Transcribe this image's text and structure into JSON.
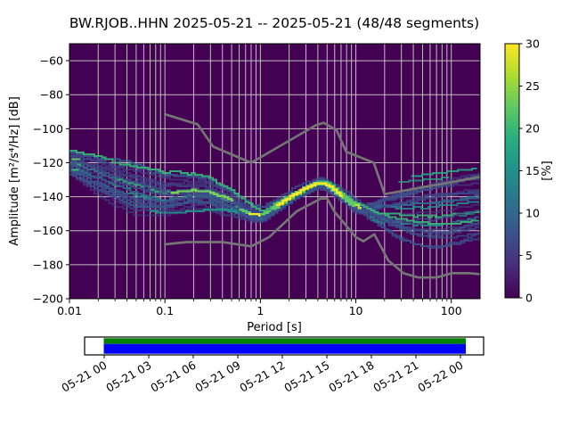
{
  "title": "BW.RJOB..HHN   2025-05-21 -- 2025-05-21  (48/48 segments)",
  "axes": {
    "xlabel": "Period [s]",
    "ylabel": "Amplitude [m²/s⁴/Hz] [dB]",
    "xlim": [
      0.01,
      200
    ],
    "ylim": [
      -200,
      -50
    ],
    "xticks": [
      {
        "v": 0.01,
        "label": "0.01"
      },
      {
        "v": 0.1,
        "label": "0.1"
      },
      {
        "v": 1,
        "label": "1"
      },
      {
        "v": 10,
        "label": "10"
      },
      {
        "v": 100,
        "label": "100"
      }
    ],
    "yticks": [
      {
        "v": -60,
        "label": "−60"
      },
      {
        "v": -80,
        "label": "−80"
      },
      {
        "v": -100,
        "label": "−100"
      },
      {
        "v": -120,
        "label": "−120"
      },
      {
        "v": -140,
        "label": "−140"
      },
      {
        "v": -160,
        "label": "−160"
      },
      {
        "v": -180,
        "label": "−180"
      },
      {
        "v": -200,
        "label": "−200"
      }
    ],
    "grid_db": [
      -60,
      -80,
      -100,
      -120,
      -140,
      -160,
      -180
    ]
  },
  "colorbar": {
    "label": "[%]",
    "lim": [
      0,
      30
    ],
    "ticks": [
      {
        "v": 0,
        "label": "0"
      },
      {
        "v": 5,
        "label": "5"
      },
      {
        "v": 10,
        "label": "10"
      },
      {
        "v": 15,
        "label": "15"
      },
      {
        "v": 20,
        "label": "20"
      },
      {
        "v": 25,
        "label": "25"
      },
      {
        "v": 30,
        "label": "30"
      }
    ],
    "gradient": [
      "#440154",
      "#472d7b",
      "#3b528b",
      "#2c728e",
      "#21918c",
      "#28ae80",
      "#5ec962",
      "#addc30",
      "#fde725"
    ]
  },
  "timeline": {
    "labels": [
      "05-21 00",
      "05-21 03",
      "05-21 06",
      "05-21 09",
      "05-21 12",
      "05-21 15",
      "05-21 18",
      "05-21 21",
      "05-22 00"
    ],
    "coverage_color_top": "#008000",
    "coverage_color_bottom": "#0000ff"
  },
  "colors": {
    "plot_bg": "#440154",
    "grid": "#d2d2cd",
    "noise_model": "#757575",
    "frame": "#000000"
  },
  "chart_data": {
    "type": "heatmap",
    "description": "PPSD 2D probability histogram (viridis) with Peterson noise models",
    "x_axis": "Period [s], log scale 0.01-200",
    "y_axis": "Amplitude dB, -200 to -50",
    "colorbar_percent_range": [
      0,
      30
    ],
    "segments_total": 48,
    "segments_used": 48,
    "mode_curve": [
      [
        0.01,
        -120.5
      ],
      [
        0.018,
        -126
      ],
      [
        0.03,
        -130.5
      ],
      [
        0.05,
        -134
      ],
      [
        0.1,
        -139.5
      ],
      [
        0.15,
        -138.3
      ],
      [
        0.2,
        -136.8
      ],
      [
        0.3,
        -137.2
      ],
      [
        0.5,
        -142.5
      ],
      [
        0.7,
        -147.5
      ],
      [
        0.9,
        -150
      ],
      [
        1.1,
        -150.3
      ],
      [
        1.4,
        -146.5
      ],
      [
        2,
        -140.8
      ],
      [
        2.8,
        -136
      ],
      [
        4,
        -132.2
      ],
      [
        4.8,
        -132.4
      ],
      [
        6,
        -135.8
      ],
      [
        8,
        -140.8
      ],
      [
        10,
        -144.8
      ],
      [
        11.2,
        -146.3
      ]
    ],
    "spread": {
      "L": [
        -2,
        -1.6,
        -1.3,
        -1.0,
        -0.7,
        -0.4,
        -0.1,
        0.15,
        0.35,
        0.6,
        0.8,
        1.0,
        1.05
      ],
      "up": [
        7.5,
        11,
        12.5,
        14,
        10.5,
        8,
        5,
        3.2,
        2.2,
        1.4,
        1.8,
        2.2,
        2.4
      ],
      "dn": [
        6,
        12,
        15,
        9,
        7.5,
        9,
        3,
        1.7,
        1.3,
        1.1,
        1.5,
        1.9,
        2.1
      ]
    },
    "fan": {
      "start_period": 11.2,
      "end_period": 195,
      "end_range_db": [
        -124,
        -162
      ],
      "low_dip_db": -170
    },
    "n_curves": 26,
    "highlights": [
      {
        "c": "#5ec962",
        "w": 2.4,
        "o": 1,
        "pts": [
          [
            0.0105,
            -117.3
          ],
          [
            0.013,
            -118.4
          ]
        ]
      },
      {
        "c": "#35b779",
        "w": 2.2,
        "o": 1,
        "pts": [
          [
            0.0105,
            -123.6
          ],
          [
            0.0125,
            -124.6
          ]
        ]
      },
      {
        "c": "#7ad151",
        "w": 2.4,
        "o": 1,
        "pts": [
          [
            0.115,
            -137.6
          ],
          [
            0.2,
            -136.2
          ],
          [
            0.3,
            -137.0
          ],
          [
            0.45,
            -141
          ],
          [
            0.52,
            -142.6
          ]
        ]
      },
      {
        "c": "#21918c",
        "w": 2.3,
        "o": 0.95,
        "pts": [
          [
            0.07,
            -148.8
          ],
          [
            0.12,
            -149.3
          ],
          [
            0.2,
            -148.8
          ],
          [
            0.3,
            -147.4
          ],
          [
            0.45,
            -147.8
          ],
          [
            0.6,
            -149.3
          ]
        ]
      },
      {
        "c": "#5ec962",
        "w": 2.6,
        "o": 1,
        "pts": [
          [
            0.6,
            -147
          ],
          [
            0.75,
            -149.6
          ],
          [
            0.95,
            -150.8
          ],
          [
            1.15,
            -149.6
          ],
          [
            1.3,
            -147.6
          ]
        ]
      },
      {
        "c": "#fde725",
        "w": 2.0,
        "o": 1,
        "pts": [
          [
            0.75,
            -149.9
          ],
          [
            1.0,
            -150.9
          ]
        ]
      },
      {
        "c": "#5ec962",
        "w": 4.2,
        "o": 1,
        "pts": [
          [
            1.3,
            -147.6
          ],
          [
            1.6,
            -144.3
          ],
          [
            2.0,
            -140.8
          ],
          [
            2.5,
            -137.6
          ],
          [
            3.0,
            -134.9
          ],
          [
            3.6,
            -132.9
          ],
          [
            4.2,
            -131.9
          ],
          [
            4.9,
            -132.5
          ],
          [
            5.6,
            -134.6
          ],
          [
            6.4,
            -137.2
          ],
          [
            7.4,
            -140
          ],
          [
            8.6,
            -142.6
          ],
          [
            10,
            -145.2
          ]
        ]
      },
      {
        "c": "#fde725",
        "w": 2.6,
        "o": 1,
        "pts": [
          [
            1.45,
            -145.6
          ],
          [
            1.8,
            -142.4
          ],
          [
            2.2,
            -139.4
          ],
          [
            2.7,
            -136.4
          ],
          [
            3.2,
            -134.2
          ],
          [
            3.8,
            -132.4
          ],
          [
            4.3,
            -131.9
          ],
          [
            4.8,
            -132.3
          ],
          [
            5.3,
            -133.6
          ],
          [
            5.9,
            -135.6
          ],
          [
            6.6,
            -138
          ],
          [
            7.3,
            -140.2
          ]
        ]
      },
      {
        "c": "#bddf26",
        "w": 2.4,
        "o": 1,
        "pts": [
          [
            9.8,
            -144.6
          ],
          [
            11.5,
            -146.8
          ]
        ]
      },
      {
        "c": "#26a784",
        "w": 2.0,
        "o": 0.9,
        "pts": [
          [
            38,
            -128.2
          ],
          [
            70,
            -126.2
          ],
          [
            120,
            -124.6
          ],
          [
            185,
            -123.4
          ]
        ]
      },
      {
        "c": "#26a784",
        "w": 2.0,
        "o": 0.75,
        "pts": [
          [
            28,
            -131.5
          ],
          [
            55,
            -129.8
          ],
          [
            95,
            -128.8
          ]
        ]
      },
      {
        "c": "#21918c",
        "w": 2.0,
        "o": 0.7,
        "pts": [
          [
            120,
            -151.5
          ],
          [
            180,
            -149.5
          ]
        ]
      },
      {
        "c": "#21918c",
        "w": 2.0,
        "o": 0.7,
        "pts": [
          [
            14,
            -152
          ],
          [
            20,
            -156.5
          ]
        ]
      }
    ],
    "noise_models": {
      "nhnm": [
        [
          0.1,
          -91.5
        ],
        [
          0.22,
          -97.4
        ],
        [
          0.32,
          -110.5
        ],
        [
          0.8,
          -120.0
        ],
        [
          3.8,
          -98.0
        ],
        [
          4.6,
          -96.5
        ],
        [
          6.3,
          -101.0
        ],
        [
          7.9,
          -113.5
        ],
        [
          15.4,
          -120.0
        ],
        [
          20.0,
          -138.5
        ],
        [
          200,
          -128.4
        ]
      ],
      "nlnm": [
        [
          0.1,
          -168.0
        ],
        [
          0.17,
          -166.7
        ],
        [
          0.4,
          -166.7
        ],
        [
          0.8,
          -169.2
        ],
        [
          1.24,
          -163.7
        ],
        [
          2.4,
          -148.6
        ],
        [
          4.3,
          -141.1
        ],
        [
          5.0,
          -141.1
        ],
        [
          6.0,
          -149.0
        ],
        [
          10.0,
          -163.8
        ],
        [
          12.0,
          -166.2
        ],
        [
          15.6,
          -162.1
        ],
        [
          21.9,
          -177.5
        ],
        [
          31.6,
          -185.0
        ],
        [
          45.0,
          -187.5
        ],
        [
          70.0,
          -187.5
        ],
        [
          101.0,
          -185.0
        ],
        [
          154.0,
          -185.0
        ],
        [
          200,
          -185.6
        ]
      ]
    }
  }
}
